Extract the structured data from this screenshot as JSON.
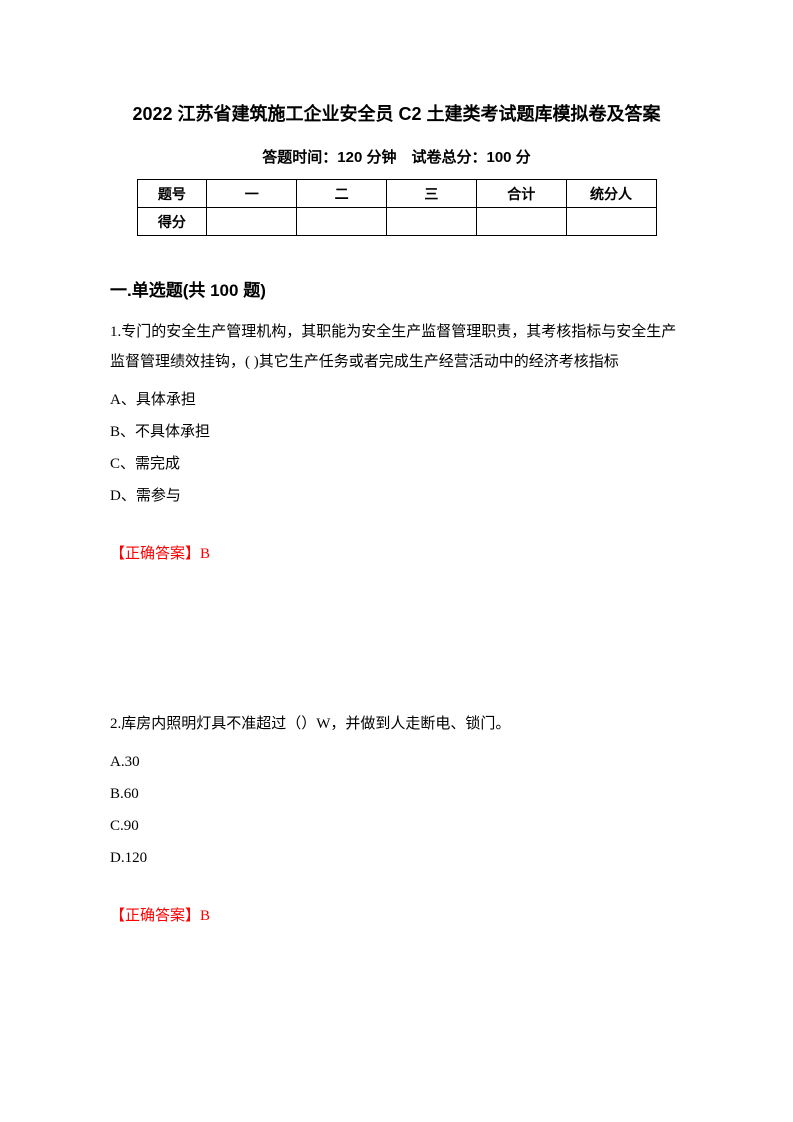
{
  "title": "2022 江苏省建筑施工企业安全员 C2 土建类考试题库模拟卷及答案",
  "subtitle": "答题时间：120 分钟　试卷总分：100 分",
  "scoreTable": {
    "row1": {
      "label": "题号",
      "col1": "一",
      "col2": "二",
      "col3": "三",
      "col4": "合计",
      "col5": "统分人"
    },
    "row2": {
      "label": "得分",
      "col1": "",
      "col2": "",
      "col3": "",
      "col4": "",
      "col5": ""
    }
  },
  "sectionTitle": "一.单选题(共 100 题)",
  "q1": {
    "text": "1.专门的安全生产管理机构，其职能为安全生产监督管理职责，其考核指标与安全生产监督管理绩效挂钩，( )其它生产任务或者完成生产经营活动中的经济考核指标",
    "optA": "A、具体承担",
    "optB": "B、不具体承担",
    "optC": "C、需完成",
    "optD": "D、需参与",
    "answer": "【正确答案】B"
  },
  "q2": {
    "text": "2.库房内照明灯具不准超过（）W，并做到人走断电、锁门。",
    "optA": "A.30",
    "optB": "B.60",
    "optC": "C.90",
    "optD": "D.120",
    "answer": "【正确答案】B"
  }
}
